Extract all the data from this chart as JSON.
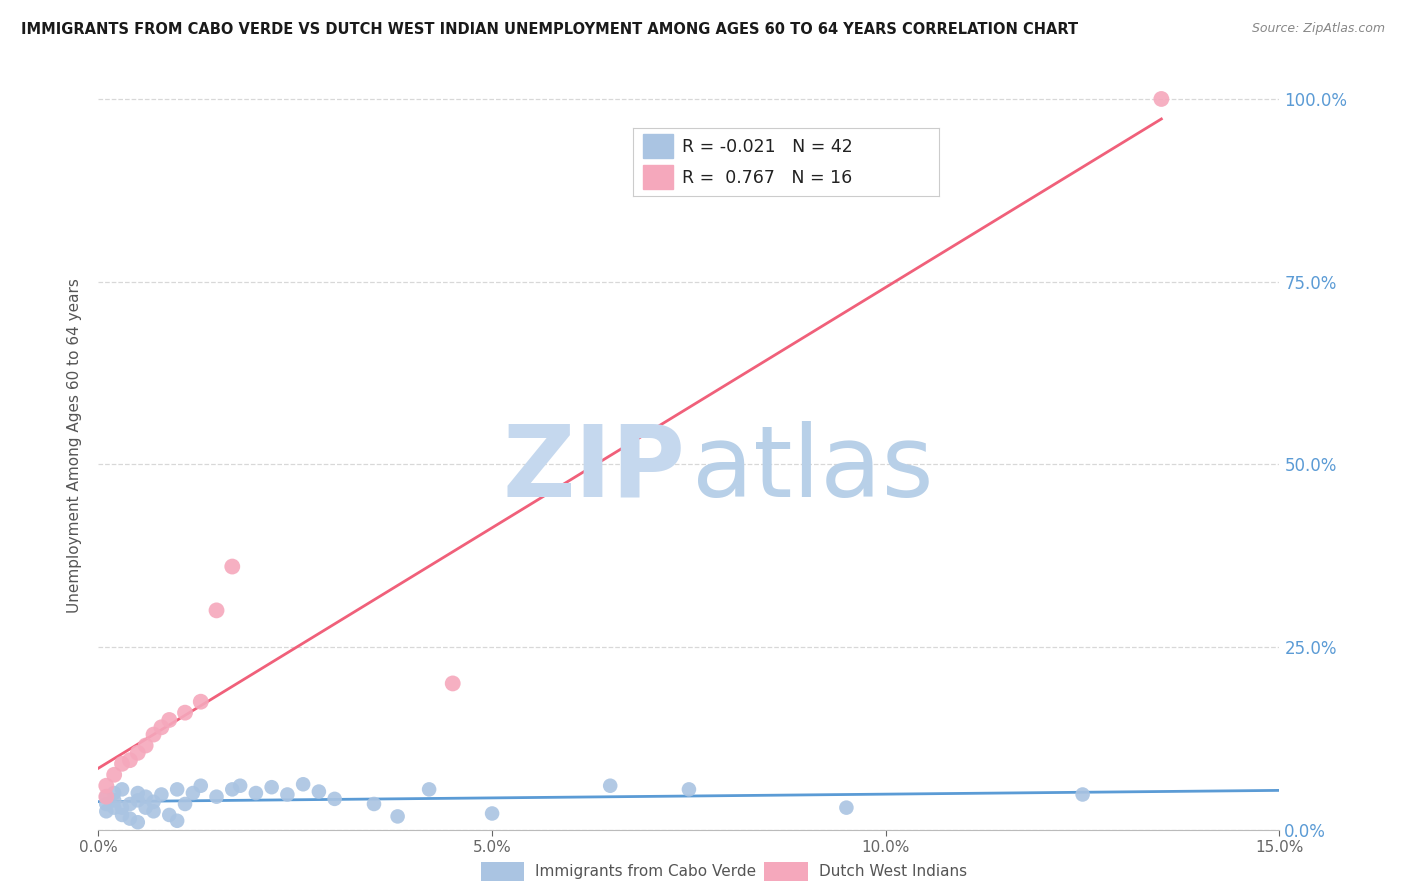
{
  "title": "IMMIGRANTS FROM CABO VERDE VS DUTCH WEST INDIAN UNEMPLOYMENT AMONG AGES 60 TO 64 YEARS CORRELATION CHART",
  "source": "Source: ZipAtlas.com",
  "ylabel_left": "Unemployment Among Ages 60 to 64 years",
  "x_label_blue": "Immigrants from Cabo Verde",
  "x_label_pink": "Dutch West Indians",
  "xlim": [
    0.0,
    0.15
  ],
  "ylim": [
    0.0,
    1.05
  ],
  "legend_blue_R": "-0.021",
  "legend_blue_N": "42",
  "legend_pink_R": "0.767",
  "legend_pink_N": "16",
  "color_blue": "#aac4e2",
  "color_pink": "#f5a8bc",
  "color_line_blue": "#5b9bd5",
  "color_line_pink": "#f0607a",
  "color_axis_right": "#5b9bd5",
  "color_watermark_zip": "#c5d8ee",
  "color_watermark_atlas": "#b8d0e8",
  "background_color": "#ffffff",
  "grid_color": "#d8d8d8",
  "cabo_verde_x": [
    0.001,
    0.001,
    0.001,
    0.002,
    0.002,
    0.002,
    0.003,
    0.003,
    0.003,
    0.004,
    0.004,
    0.005,
    0.005,
    0.005,
    0.006,
    0.006,
    0.007,
    0.007,
    0.008,
    0.009,
    0.01,
    0.01,
    0.011,
    0.012,
    0.013,
    0.015,
    0.017,
    0.018,
    0.02,
    0.022,
    0.024,
    0.026,
    0.028,
    0.03,
    0.035,
    0.038,
    0.042,
    0.05,
    0.065,
    0.075,
    0.095,
    0.125
  ],
  "cabo_verde_y": [
    0.025,
    0.035,
    0.045,
    0.03,
    0.04,
    0.05,
    0.02,
    0.03,
    0.055,
    0.035,
    0.015,
    0.04,
    0.05,
    0.01,
    0.03,
    0.045,
    0.025,
    0.038,
    0.048,
    0.02,
    0.055,
    0.012,
    0.035,
    0.05,
    0.06,
    0.045,
    0.055,
    0.06,
    0.05,
    0.058,
    0.048,
    0.062,
    0.052,
    0.042,
    0.035,
    0.018,
    0.055,
    0.022,
    0.06,
    0.055,
    0.03,
    0.048
  ],
  "dutch_x": [
    0.001,
    0.001,
    0.002,
    0.003,
    0.004,
    0.005,
    0.006,
    0.007,
    0.008,
    0.009,
    0.011,
    0.013,
    0.015,
    0.017,
    0.045,
    0.135
  ],
  "dutch_y": [
    0.045,
    0.06,
    0.075,
    0.09,
    0.095,
    0.105,
    0.115,
    0.13,
    0.14,
    0.15,
    0.16,
    0.175,
    0.3,
    0.36,
    0.2,
    1.0
  ]
}
